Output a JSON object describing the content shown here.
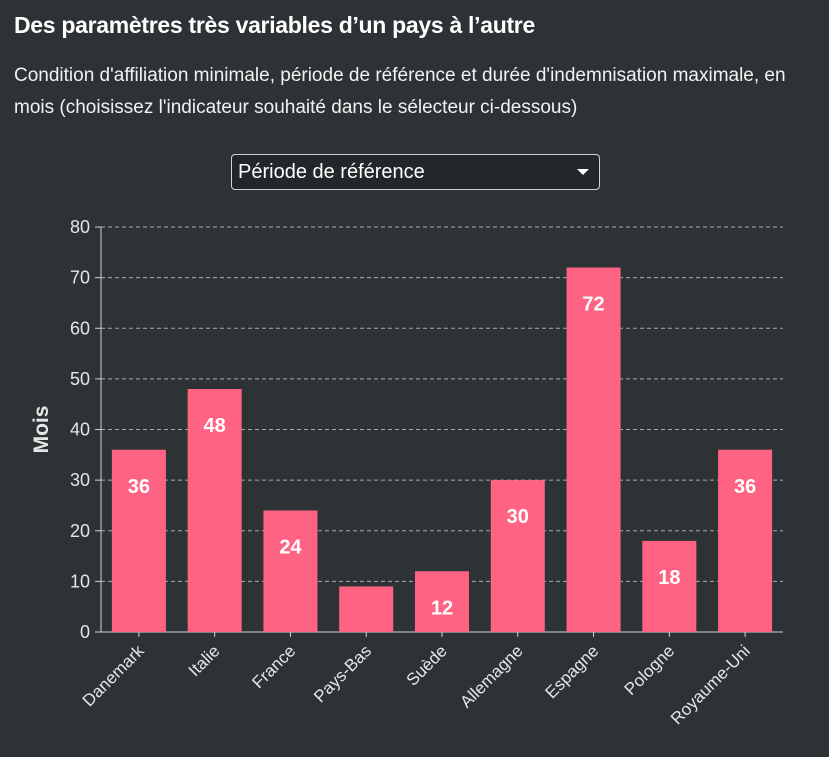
{
  "header": {
    "title": "Des paramètres très variables d’un pays à l’autre",
    "subtitle": "Condition d'affiliation minimale, période de référence et durée d'indemnisation maximale, en mois (choisissez l'indicateur souhaité dans le sélecteur ci-dessous)"
  },
  "selector": {
    "selected": "Période de référence",
    "icon": "chevron-down-icon"
  },
  "colors": {
    "background": "#2d3235",
    "bar": "#ff6384",
    "grid": "#cfd3d6",
    "text": "#e6e6e6"
  },
  "chart_data": {
    "type": "bar",
    "categories": [
      "Danemark",
      "Italie",
      "France",
      "Pays-Bas",
      "Suède",
      "Allemagne",
      "Espagne",
      "Pologne",
      "Royaume-Uni"
    ],
    "values": [
      36,
      48,
      24,
      9,
      12,
      30,
      72,
      18,
      36
    ],
    "data_labels": [
      "36",
      "48",
      "24",
      "",
      "12",
      "30",
      "72",
      "18",
      "36"
    ],
    "ylabel": "Mois",
    "ylim": [
      0,
      80
    ],
    "yticks": [
      0,
      10,
      20,
      30,
      40,
      50,
      60,
      70,
      80
    ],
    "grid": true
  }
}
